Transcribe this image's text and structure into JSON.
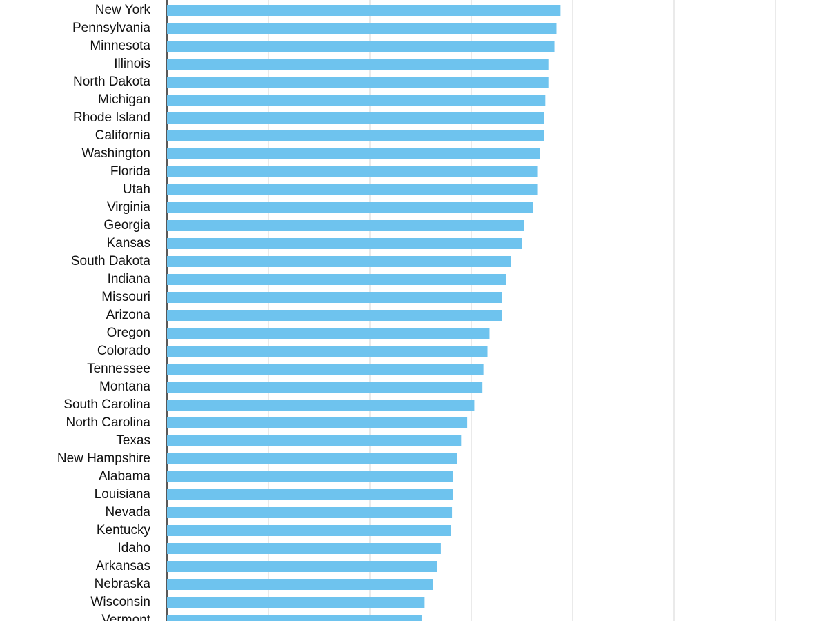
{
  "chart_data": {
    "type": "hbar",
    "categories": [
      "New York",
      "Pennsylvania",
      "Minnesota",
      "Illinois",
      "North Dakota",
      "Michigan",
      "Rhode Island",
      "California",
      "Washington",
      "Florida",
      "Utah",
      "Virginia",
      "Georgia",
      "Kansas",
      "South Dakota",
      "Indiana",
      "Missouri",
      "Arizona",
      "Oregon",
      "Colorado",
      "Tennessee",
      "Montana",
      "South Carolina",
      "North Carolina",
      "Texas",
      "New Hampshire",
      "Alabama",
      "Louisiana",
      "Nevada",
      "Kentucky",
      "Idaho",
      "Arkansas",
      "Nebraska",
      "Wisconsin",
      "Vermont"
    ],
    "values": [
      3.88,
      3.84,
      3.82,
      3.76,
      3.76,
      3.73,
      3.72,
      3.72,
      3.68,
      3.65,
      3.65,
      3.61,
      3.52,
      3.5,
      3.39,
      3.34,
      3.3,
      3.3,
      3.18,
      3.16,
      3.12,
      3.11,
      3.03,
      2.96,
      2.9,
      2.86,
      2.82,
      2.82,
      2.81,
      2.8,
      2.7,
      2.66,
      2.62,
      2.54,
      2.51
    ],
    "color": "#6ec3ee",
    "xlim": [
      0,
      6.5
    ],
    "xticks": [
      0,
      1,
      2,
      3,
      4,
      5,
      6
    ],
    "grid": true
  }
}
